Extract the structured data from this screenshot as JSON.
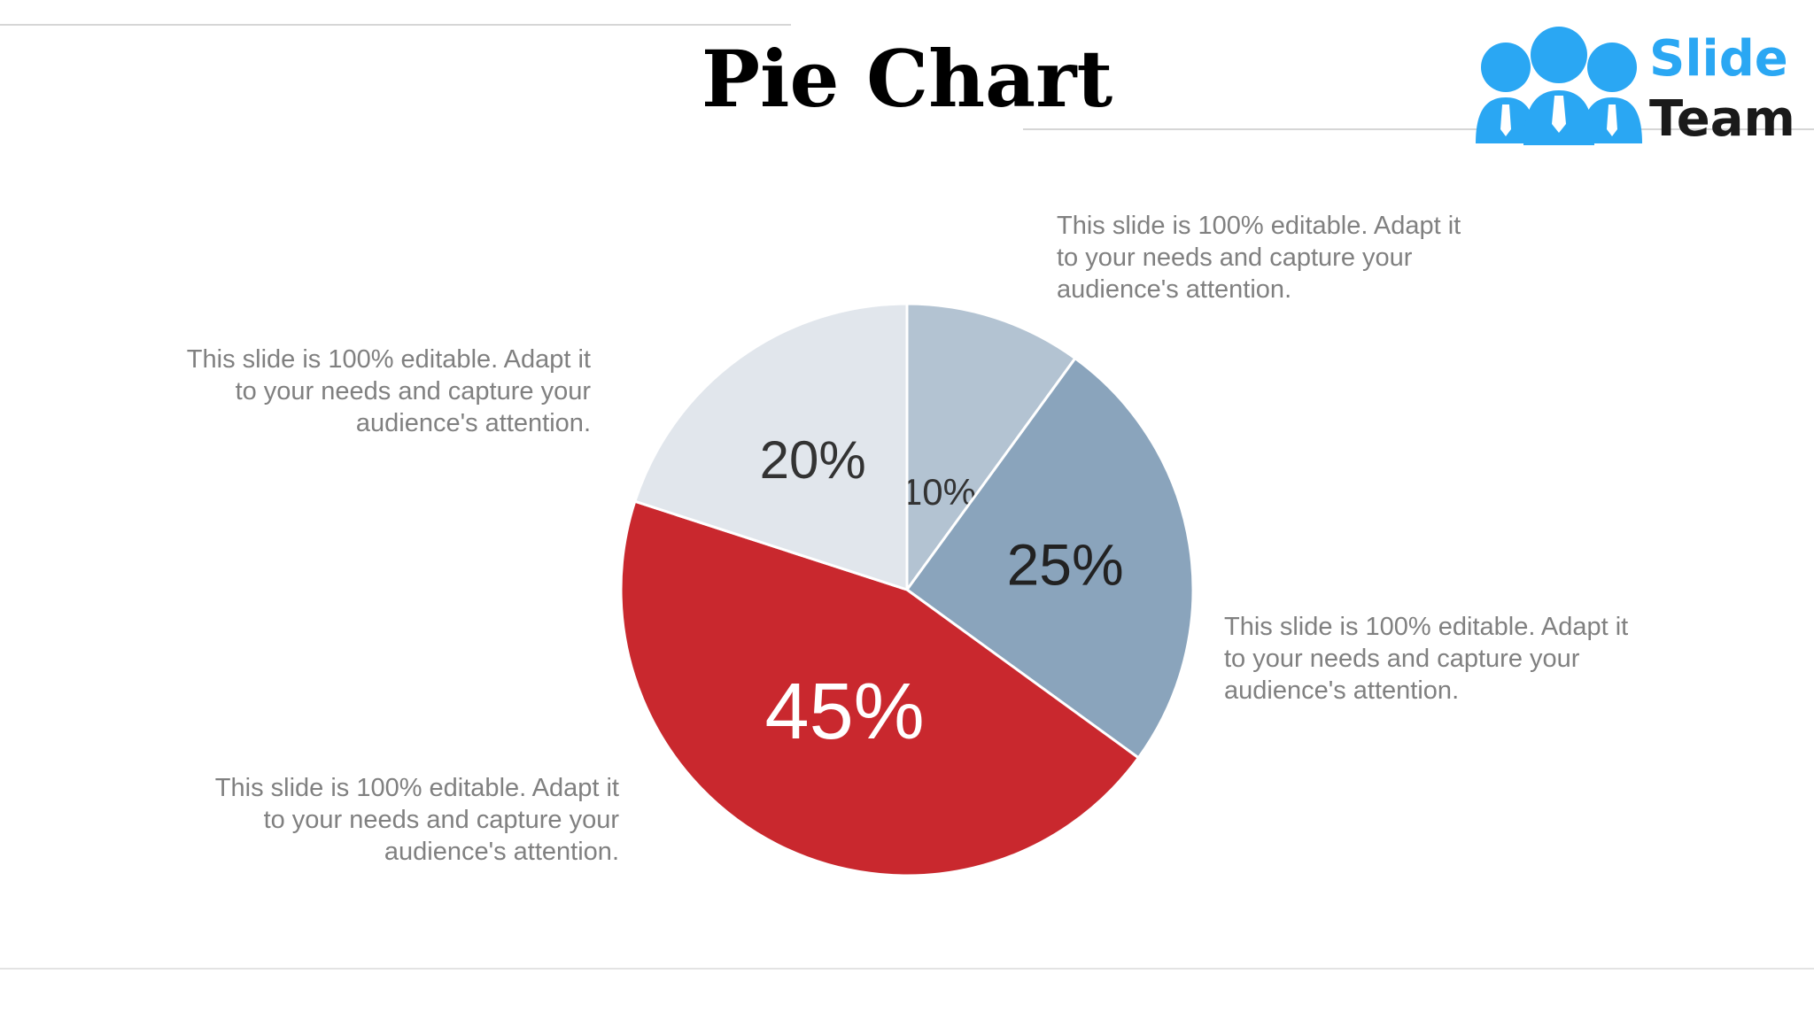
{
  "slide": {
    "title": "Pie Chart",
    "logo": {
      "word1": "Slide",
      "word2": "Team",
      "icon": "people-group-icon",
      "brand_color": "#2aa7f3"
    },
    "notes": [
      "This slide is 100% editable. Adapt it\nto your needs and capture your\naudience's attention.",
      "This slide is 100% editable. Adapt it\nto your needs and capture your\naudience's attention.",
      "This slide is 100% editable. Adapt it\nto your needs and capture your\naudience's attention.",
      "This slide is 100% editable. Adapt it\nto your needs and capture your\naudience's attention."
    ]
  },
  "chart_data": {
    "type": "pie",
    "title": "",
    "slices": [
      {
        "value": 10,
        "label": "10%",
        "color": "#b3c3d2",
        "label_color": "#333333"
      },
      {
        "value": 25,
        "label": "25%",
        "color": "#8aa4bc",
        "label_color": "#222222"
      },
      {
        "value": 45,
        "label": "45%",
        "color": "#c9282e",
        "label_color": "#ffffff"
      },
      {
        "value": 20,
        "label": "20%",
        "color": "#e1e6ec",
        "label_color": "#333333"
      }
    ],
    "start_angle_deg": 0,
    "direction": "clockwise"
  }
}
